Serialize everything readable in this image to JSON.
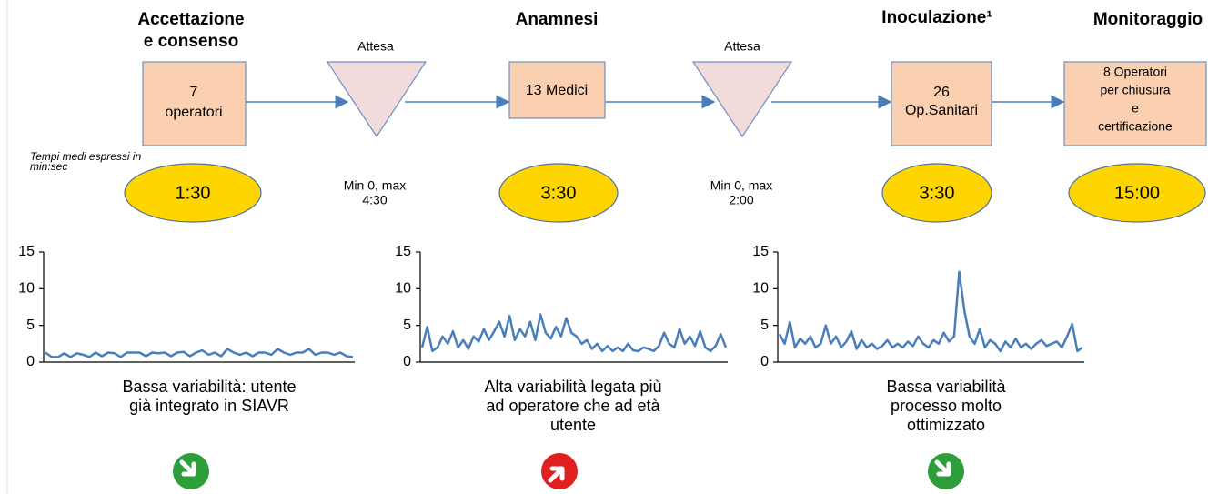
{
  "stages": [
    {
      "title": [
        "Accettazione",
        "e consenso"
      ],
      "box": [
        "7",
        "operatori"
      ],
      "time": "1:30"
    },
    {
      "title": [
        "Anamnesi"
      ],
      "box": [
        "13 Medici"
      ],
      "time": "3:30"
    },
    {
      "title": [
        "Inoculazione¹"
      ],
      "box": [
        "26",
        "Op.Sanitari"
      ],
      "time": "3:30"
    },
    {
      "title": [
        "Monitoraggio"
      ],
      "box": [
        "8 Operatori",
        "per chiusura",
        "e",
        "certificazione"
      ],
      "time": "15:00"
    }
  ],
  "waits": [
    {
      "label": "Attesa",
      "range": [
        "Min 0, max",
        "4:30"
      ]
    },
    {
      "label": "Attesa",
      "range": [
        "Min 0, max",
        "2:00"
      ]
    }
  ],
  "note": [
    "Tempi medi espressi in",
    "min:sec"
  ],
  "charts": [
    {
      "type": "line",
      "color": "#4a7ebb",
      "ylim": [
        0,
        15
      ],
      "yticks": [
        0,
        5,
        10,
        15
      ],
      "values": [
        1.3,
        0.7,
        0.7,
        1.2,
        0.7,
        1.2,
        1.0,
        0.7,
        1.3,
        0.8,
        1.3,
        1.2,
        0.7,
        1.3,
        1.3,
        1.3,
        0.8,
        1.3,
        1.2,
        1.3,
        0.8,
        1.3,
        1.4,
        0.8,
        1.3,
        1.6,
        1.0,
        1.3,
        0.8,
        1.8,
        1.3,
        1.0,
        1.3,
        0.8,
        1.3,
        1.3,
        1.0,
        1.8,
        1.3,
        1.0,
        1.3,
        1.3,
        1.8,
        1.0,
        1.3,
        1.3,
        1.0,
        1.3,
        0.8,
        0.7
      ],
      "caption": [
        "Bassa variabilità: utente",
        "già integrato in SIAVR"
      ]
    },
    {
      "type": "line",
      "color": "#4a7ebb",
      "ylim": [
        0,
        15
      ],
      "yticks": [
        0,
        5,
        10,
        15
      ],
      "values": [
        2,
        4.8,
        1.5,
        2,
        3.5,
        2.5,
        4.2,
        2,
        3,
        1.8,
        3.5,
        2.8,
        4.5,
        3,
        4.2,
        5.5,
        3.5,
        6.3,
        3,
        4.5,
        3.5,
        5.5,
        3,
        6.5,
        4,
        3.2,
        4.8,
        3.5,
        6,
        4,
        3.5,
        2.5,
        3,
        1.8,
        2.5,
        1.5,
        2.2,
        1.5,
        2,
        1.5,
        2.5,
        1.6,
        1.5,
        2,
        1.8,
        1.5,
        2.2,
        4,
        2.5,
        2,
        4.5,
        2.5,
        3.5,
        2.2,
        4.2,
        2,
        1.5,
        2.2,
        3.8,
        2
      ],
      "caption": [
        "Alta variabilità legata più",
        "ad operatore che ad età",
        "utente"
      ]
    },
    {
      "type": "line",
      "color": "#4a7ebb",
      "ylim": [
        0,
        15
      ],
      "yticks": [
        0,
        5,
        10,
        15
      ],
      "values": [
        3.8,
        2.5,
        5.5,
        2,
        3.2,
        2.5,
        3.5,
        2,
        2.5,
        5,
        2.5,
        3.5,
        2,
        2.8,
        4.2,
        1.8,
        3,
        2,
        2.5,
        1.8,
        2.2,
        3,
        2,
        2.5,
        2,
        2.8,
        2.2,
        3.5,
        2.5,
        2,
        3,
        2.5,
        4,
        2.8,
        3.5,
        12.3,
        7,
        3.5,
        2.5,
        4.5,
        2,
        3,
        2.5,
        1.5,
        2.8,
        2,
        3.2,
        2,
        2.5,
        1.8,
        2.5,
        3,
        2.2,
        2.5,
        2.8,
        2,
        3.5,
        5.2,
        1.5,
        2
      ],
      "caption": [
        "Bassa variabilità",
        "processo molto",
        "ottimizzato"
      ]
    }
  ]
}
